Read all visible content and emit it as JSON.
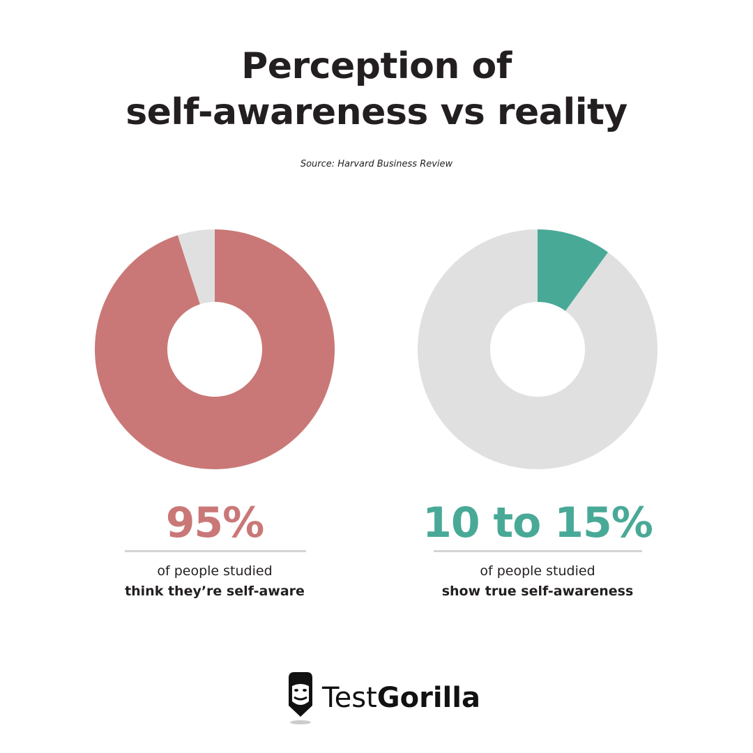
{
  "title_line1": "Perception of",
  "title_line2": "self-awareness vs reality",
  "source": "Source: Harvard Business Review",
  "chart_data": [
    {
      "type": "pie",
      "donut": true,
      "slices": [
        {
          "label": "think they're self-aware",
          "value": 95,
          "color": "#c97877"
        },
        {
          "label": "other",
          "value": 5,
          "color": "#e0e0e0"
        }
      ],
      "headline": "95%",
      "caption_line1": "of people studied",
      "caption_line2": "think they’re self-aware",
      "accent": "#c97877"
    },
    {
      "type": "pie",
      "donut": true,
      "slices": [
        {
          "label": "show true self-awareness",
          "value": 10,
          "color": "#49a997"
        },
        {
          "label": "other",
          "value": 90,
          "color": "#e0e0e0"
        }
      ],
      "headline": "10 to 15%",
      "caption_line1": "of people studied",
      "caption_line2": "show true self-awareness",
      "accent": "#49a997"
    }
  ],
  "logo": {
    "part1": "Test",
    "part2": "Gorilla"
  }
}
